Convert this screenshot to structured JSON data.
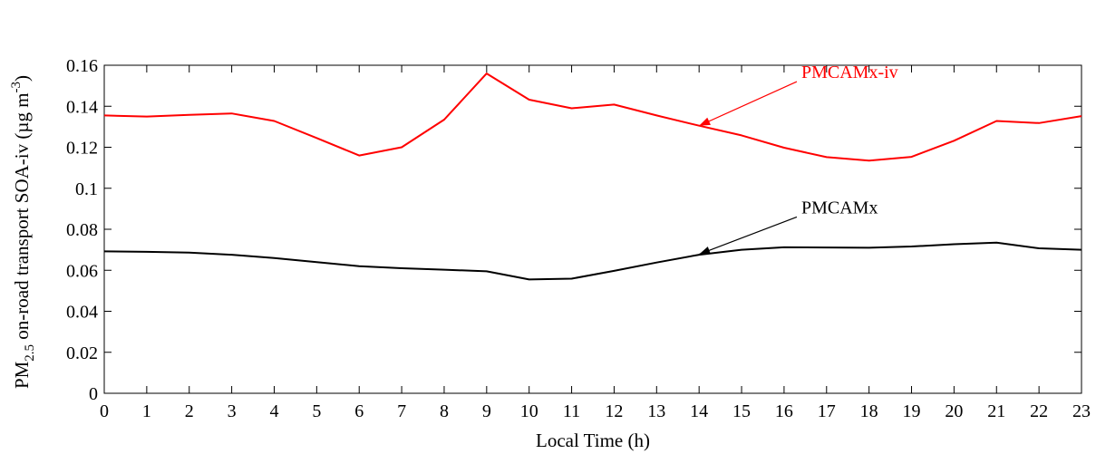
{
  "chart_data": {
    "type": "line",
    "xlabel": "Local Time (h)",
    "ylabel": {
      "prefix": "PM",
      "sub": "2.5",
      "main": " on-road transport SOA-iv (µg m",
      "sup": "-3",
      "suffix": ")"
    },
    "xlim": [
      0,
      23
    ],
    "ylim": [
      0,
      0.16
    ],
    "x_ticks": [
      0,
      1,
      2,
      3,
      4,
      5,
      6,
      7,
      8,
      9,
      10,
      11,
      12,
      13,
      14,
      15,
      16,
      17,
      18,
      19,
      20,
      21,
      22,
      23
    ],
    "x_tick_labels": [
      "0",
      "1",
      "2",
      "3",
      "4",
      "5",
      "6",
      "7",
      "8",
      "9",
      "10",
      "11",
      "12",
      "13",
      "14",
      "15",
      "16",
      "17",
      "18",
      "19",
      "20",
      "21",
      "22",
      "23"
    ],
    "y_ticks": [
      0,
      0.02,
      0.04,
      0.06,
      0.08,
      0.1,
      0.12,
      0.14,
      0.16
    ],
    "y_tick_labels": [
      "0",
      "0.02",
      "0.04",
      "0.06",
      "0.08",
      "0.1",
      "0.12",
      "0.14",
      "0.16"
    ],
    "grid": false,
    "x": [
      0,
      1,
      2,
      3,
      4,
      5,
      6,
      7,
      8,
      9,
      10,
      11,
      12,
      13,
      14,
      15,
      16,
      17,
      18,
      19,
      20,
      21,
      22,
      23
    ],
    "series": [
      {
        "name": "PMCAMx-iv",
        "color": "#ff0000",
        "values": [
          0.1355,
          0.135,
          0.1358,
          0.1365,
          0.1328,
          0.1245,
          0.116,
          0.12,
          0.1335,
          0.156,
          0.1432,
          0.139,
          0.1408,
          0.1355,
          0.1305,
          0.1258,
          0.1198,
          0.1152,
          0.1135,
          0.1153,
          0.1232,
          0.1328,
          0.1318,
          0.1352
        ],
        "label_at": [
          14,
          0.1305
        ],
        "arrow_tail": [
          16.3,
          0.152
        ]
      },
      {
        "name": "PMCAMx",
        "color": "#000000",
        "values": [
          0.0692,
          0.069,
          0.0686,
          0.0676,
          0.066,
          0.064,
          0.062,
          0.061,
          0.0603,
          0.0595,
          0.0555,
          0.0559,
          0.0597,
          0.0638,
          0.0676,
          0.07,
          0.0712,
          0.0711,
          0.071,
          0.0716,
          0.0727,
          0.0735,
          0.0707,
          0.07
        ],
        "label_at": [
          14,
          0.0678
        ],
        "arrow_tail": [
          16.3,
          0.086
        ]
      }
    ]
  }
}
